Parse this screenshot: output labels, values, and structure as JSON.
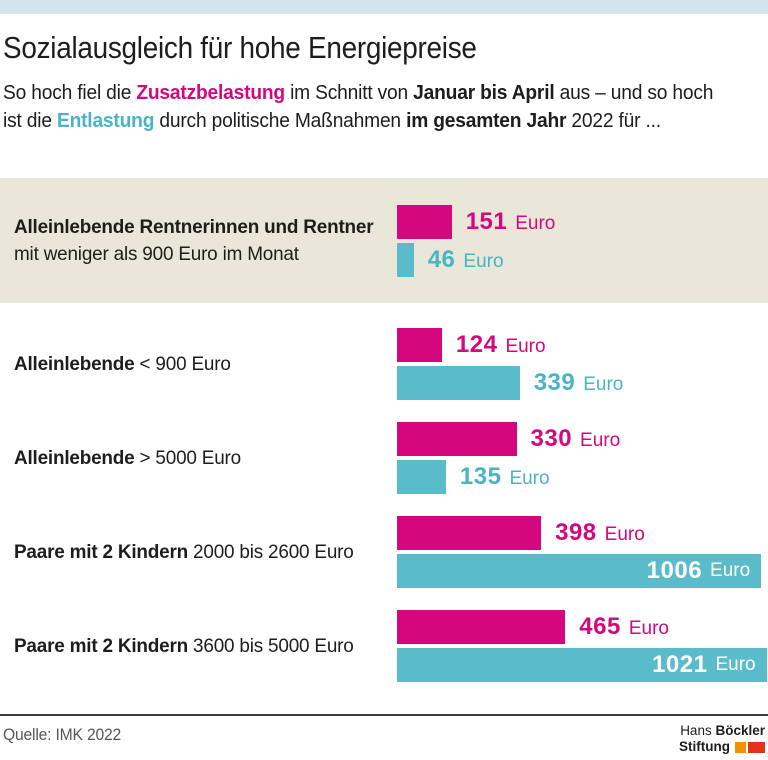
{
  "header": {
    "title": "Sozialausgleich für hohe Energiepreise",
    "subtitle": {
      "l1s1": "So hoch fiel die ",
      "l1s2": "Zusatzbelastung",
      "l1s3": " im Schnitt von ",
      "l1s4": "Januar bis April",
      "l1s5": " aus – und so hoch",
      "l2s1": "ist die ",
      "l2s2": "Entlastung",
      "l2s3": " durch politische Maßnahmen ",
      "l2s4": "im gesamten Jahr",
      "l2s5": " 2022 für ..."
    }
  },
  "unit": "Euro",
  "rows": [
    {
      "label_bold": "Alleinlebende Rentnerinnen und Rentner",
      "label_line2": "mit weniger als 900 Euro im Monat",
      "label_rest": "",
      "burden": 151,
      "relief": 46,
      "highlighted": true
    },
    {
      "label_bold": "Alleinlebende",
      "label_rest": " < 900 Euro",
      "burden": 124,
      "relief": 339,
      "highlighted": false
    },
    {
      "label_bold": "Alleinlebende",
      "label_rest": " > 5000 Euro",
      "burden": 330,
      "relief": 135,
      "highlighted": false
    },
    {
      "label_bold": "Paare mit 2 Kindern",
      "label_rest": " 2000 bis 2600 Euro",
      "burden": 398,
      "relief": 1006,
      "highlighted": false
    },
    {
      "label_bold": "Paare mit 2 Kindern",
      "label_rest": " 3600 bis 5000 Euro",
      "burden": 465,
      "relief": 1021,
      "highlighted": false
    }
  ],
  "chart_data": {
    "type": "bar",
    "orientation": "horizontal",
    "title": "Sozialausgleich für hohe Energiepreise",
    "unit": "Euro",
    "value_labels": true,
    "axis_visible": false,
    "categories": [
      "Alleinlebende Rentnerinnen und Rentner mit weniger als 900 Euro im Monat",
      "Alleinlebende < 900 Euro",
      "Alleinlebende > 5000 Euro",
      "Paare mit 2 Kindern 2000 bis 2600 Euro",
      "Paare mit 2 Kindern 3600 bis 5000 Euro"
    ],
    "series": [
      {
        "name": "Zusatzbelastung (Januar bis April)",
        "color": "#d5077e",
        "values": [
          151,
          124,
          330,
          398,
          465
        ]
      },
      {
        "name": "Entlastung (gesamtes Jahr 2022)",
        "color": "#5abccb",
        "values": [
          46,
          339,
          135,
          1006,
          1021
        ]
      }
    ],
    "xlim": [
      0,
      1030
    ]
  },
  "colors": {
    "burden": "#d5077e",
    "relief": "#5abccb",
    "highlight_band": "#e8e7d8",
    "top_bar": "#d2e4ec",
    "logo_orange": "#f39200",
    "logo_red": "#e5321f"
  },
  "footer": {
    "source": "Quelle: IMK 2022",
    "logo": {
      "line1_regular": "Hans",
      "line1_bold": "Böckler",
      "line2_bold": "Stiftung"
    }
  }
}
